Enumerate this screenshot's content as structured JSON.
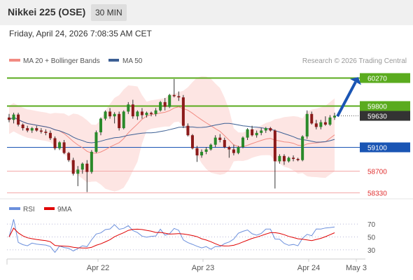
{
  "header": {
    "title": "Nikkei 225 (OSE)",
    "interval": "30 MIN"
  },
  "datetime": "Friday, April 24, 2026 7:08:35 AM CET",
  "legend": {
    "ma20": "MA 20 + Bollinger Bands",
    "ma50": "MA 50",
    "ma20_color": "#f28b82",
    "ma50_color": "#3c5f94",
    "rsi": "RSI",
    "ma9": "9MA",
    "rsi_color": "#6b8fdc",
    "ma9_color": "#e00000"
  },
  "copyright": "Research © 2026 Trading Central",
  "price_levels": [
    {
      "value": 60270,
      "label": "60270",
      "kind": "resistance",
      "color": "#5aab1e"
    },
    {
      "value": 59800,
      "label": "59800",
      "kind": "resistance",
      "color": "#5aab1e"
    },
    {
      "value": 59630,
      "label": "59630",
      "kind": "current",
      "color": "#333333"
    },
    {
      "value": 59100,
      "label": "59100",
      "kind": "pivot",
      "color": "#1a55b4"
    },
    {
      "value": 58700,
      "label": "58700",
      "kind": "support",
      "color": "#e03030"
    },
    {
      "value": 58330,
      "label": "58330",
      "kind": "support",
      "color": "#e03030"
    }
  ],
  "rsi_levels": [
    "70",
    "50",
    "30"
  ],
  "x_labels": [
    "Apr 22",
    "Apr 23",
    "Apr 24",
    "May 3"
  ],
  "chart_data": {
    "type": "candlestick",
    "price_range": [
      58250,
      60450
    ],
    "candles": [
      [
        59600,
        59660,
        59520,
        59560
      ],
      [
        59560,
        59680,
        59500,
        59650
      ],
      [
        59650,
        59680,
        59450,
        59480
      ],
      [
        59480,
        59500,
        59380,
        59420
      ],
      [
        59420,
        59460,
        59350,
        59380
      ],
      [
        59380,
        59440,
        59340,
        59420
      ],
      [
        59420,
        59460,
        59360,
        59380
      ],
      [
        59380,
        59420,
        59330,
        59360
      ],
      [
        59360,
        59400,
        59300,
        59340
      ],
      [
        59340,
        59380,
        59220,
        59250
      ],
      [
        59250,
        59280,
        59050,
        59080
      ],
      [
        59080,
        59200,
        59050,
        59180
      ],
      [
        59180,
        59220,
        58980,
        59000
      ],
      [
        59000,
        59020,
        58850,
        58880
      ],
      [
        58880,
        58920,
        58620,
        58650
      ],
      [
        58650,
        58780,
        58440,
        58720
      ],
      [
        58720,
        58840,
        58650,
        58820
      ],
      [
        58820,
        58880,
        58340,
        58680
      ],
      [
        58680,
        59050,
        58650,
        59020
      ],
      [
        59020,
        59380,
        59000,
        59350
      ],
      [
        59350,
        59600,
        59300,
        59580
      ],
      [
        59580,
        59720,
        59550,
        59700
      ],
      [
        59700,
        59760,
        59580,
        59620
      ],
      [
        59620,
        59690,
        59500,
        59660
      ],
      [
        59660,
        59700,
        59380,
        59420
      ],
      [
        59420,
        59720,
        59400,
        59700
      ],
      [
        59700,
        59860,
        59660,
        59820
      ],
      [
        59820,
        59900,
        59580,
        59620
      ],
      [
        59620,
        59720,
        59560,
        59700
      ],
      [
        59700,
        59760,
        59580,
        59640
      ],
      [
        59640,
        59700,
        59600,
        59680
      ],
      [
        59680,
        59700,
        59620,
        59660
      ],
      [
        59660,
        59760,
        59620,
        59720
      ],
      [
        59720,
        59880,
        59700,
        59860
      ],
      [
        59860,
        59930,
        59720,
        59780
      ],
      [
        59780,
        60000,
        59760,
        59980
      ],
      [
        59980,
        60250,
        59940,
        59960
      ],
      [
        59960,
        60040,
        59880,
        59940
      ],
      [
        59940,
        59980,
        59420,
        59460
      ],
      [
        59460,
        59500,
        59280,
        59300
      ],
      [
        59300,
        59320,
        59060,
        59080
      ],
      [
        59080,
        59120,
        58850,
        58960
      ],
      [
        58960,
        59060,
        58920,
        59020
      ],
      [
        59020,
        59100,
        58980,
        59060
      ],
      [
        59060,
        59160,
        59040,
        59140
      ],
      [
        59140,
        59300,
        59100,
        59260
      ],
      [
        59260,
        59320,
        59180,
        59220
      ],
      [
        59220,
        59260,
        59080,
        59100
      ],
      [
        59100,
        59120,
        58920,
        59060
      ],
      [
        59060,
        59140,
        58960,
        59000
      ],
      [
        59000,
        59120,
        58980,
        59100
      ],
      [
        59100,
        59280,
        59080,
        59260
      ],
      [
        59260,
        59420,
        59220,
        59400
      ],
      [
        59400,
        59460,
        59280,
        59300
      ],
      [
        59300,
        59380,
        59260,
        59340
      ],
      [
        59340,
        59420,
        59300,
        59380
      ],
      [
        59380,
        59440,
        59340,
        59420
      ],
      [
        59420,
        59440,
        59360,
        59380
      ],
      [
        59380,
        59400,
        58400,
        58860
      ],
      [
        58860,
        58980,
        58820,
        58950
      ],
      [
        58950,
        58980,
        58800,
        58860
      ],
      [
        58860,
        58940,
        58840,
        58920
      ],
      [
        58920,
        58960,
        58860,
        58900
      ],
      [
        58900,
        58920,
        58860,
        58880
      ],
      [
        58880,
        59300,
        58860,
        59280
      ],
      [
        59280,
        59720,
        59240,
        59660
      ],
      [
        59660,
        59700,
        59480,
        59500
      ],
      [
        59500,
        59560,
        59400,
        59440
      ],
      [
        59440,
        59560,
        59400,
        59520
      ],
      [
        59520,
        59620,
        59460,
        59480
      ],
      [
        59480,
        59640,
        59460,
        59600
      ],
      [
        59600,
        59680,
        59560,
        59630
      ]
    ]
  }
}
